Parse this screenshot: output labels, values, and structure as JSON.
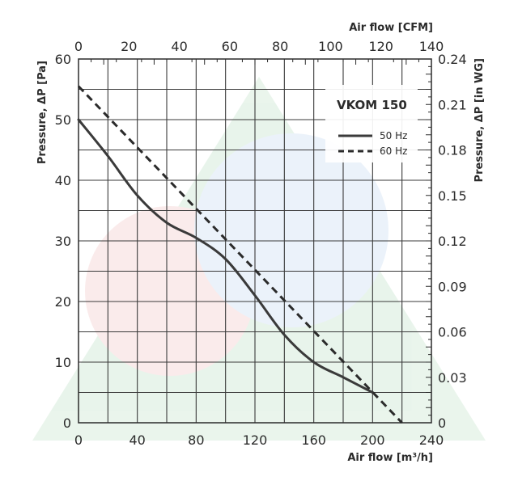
{
  "chart_data": {
    "type": "line",
    "title": "VKOM 150",
    "x_bottom": {
      "label": "Air flow [m³/h]",
      "min": 0,
      "max": 240,
      "ticks": [
        0,
        40,
        80,
        120,
        160,
        200,
        240
      ]
    },
    "x_top": {
      "label": "Air flow [CFM]",
      "min": 0,
      "max": 140,
      "ticks": [
        0,
        20,
        40,
        60,
        80,
        100,
        120,
        140
      ]
    },
    "y_left": {
      "label": "Pressure, ΔP [Pa]",
      "min": 0,
      "max": 60,
      "ticks": [
        0,
        10,
        20,
        30,
        40,
        50,
        60
      ]
    },
    "y_right": {
      "label": "Pressure, ΔP [in WG]",
      "min": 0,
      "max": 0.24,
      "ticks": [
        "0",
        "0.03",
        "0.06",
        "0.09",
        "0.12",
        "0.15",
        "0.18",
        "0.21",
        "0.24"
      ]
    },
    "grid": true,
    "legend_position": "top-right",
    "series": [
      {
        "name": "50 Hz",
        "style": "solid",
        "color": "#3a3a3a",
        "x": [
          0,
          20,
          40,
          60,
          80,
          100,
          120,
          140,
          160,
          180,
          200
        ],
        "y": [
          50,
          44,
          37.5,
          33,
          30.5,
          27,
          21,
          14.5,
          10,
          7.5,
          5
        ]
      },
      {
        "name": "60 Hz",
        "style": "dashed",
        "color": "#2b2b2b",
        "x": [
          0,
          220
        ],
        "y": [
          55.5,
          0
        ]
      }
    ]
  }
}
